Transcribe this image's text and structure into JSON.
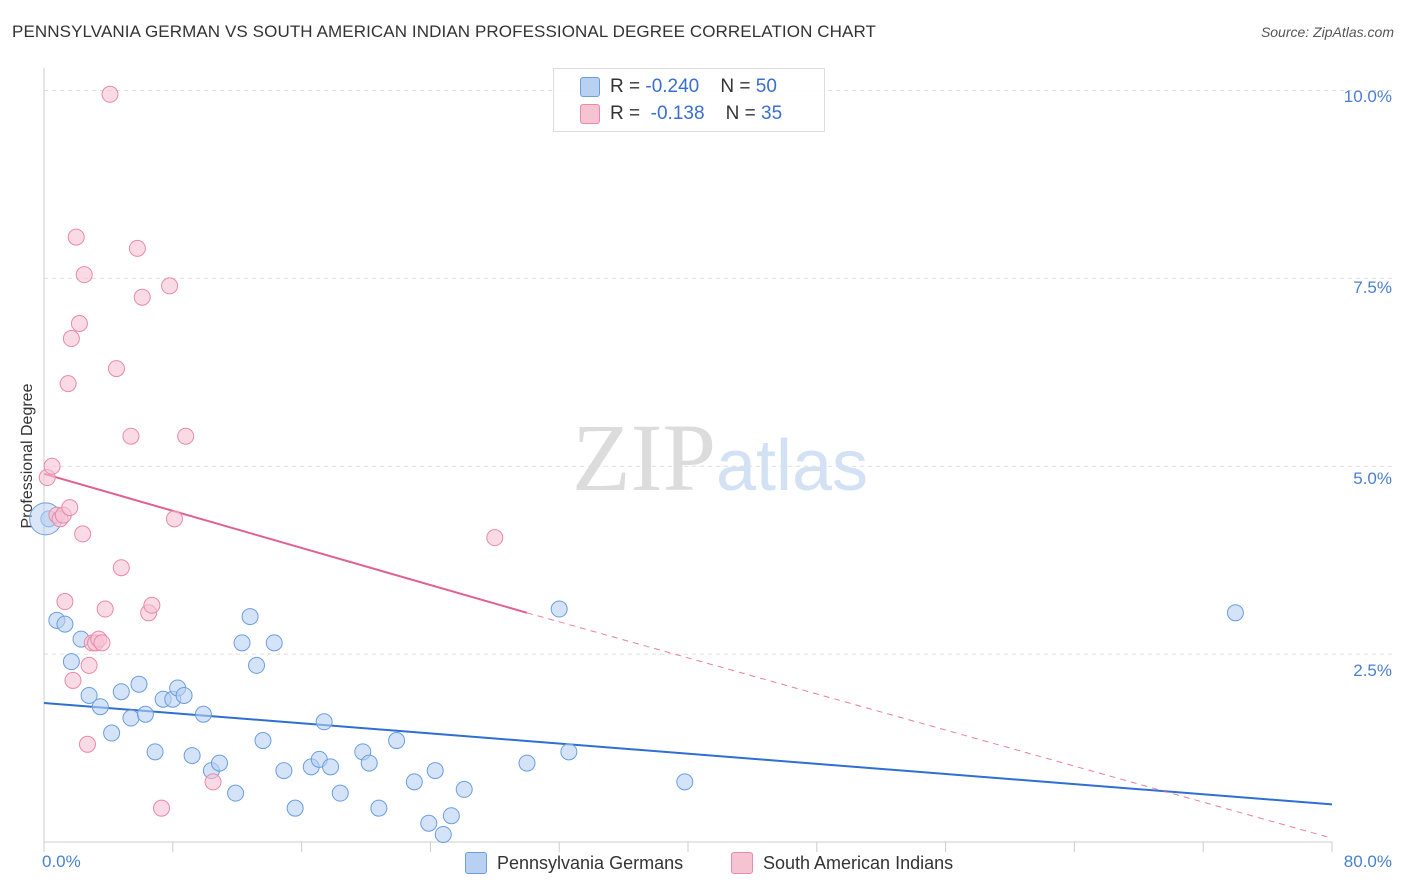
{
  "chart_data": {
    "type": "scatter",
    "title": "PENNSYLVANIA GERMAN VS SOUTH AMERICAN INDIAN PROFESSIONAL DEGREE CORRELATION CHART",
    "source": "Source: ZipAtlas.com",
    "xlabel": "",
    "ylabel": "Professional Degree",
    "xlim": [
      0,
      80
    ],
    "ylim": [
      0,
      10.3
    ],
    "x_tick_labels": [
      "0.0%",
      "80.0%"
    ],
    "y_ticks": [
      2.5,
      5.0,
      7.5,
      10.0
    ],
    "y_tick_labels": [
      "2.5%",
      "5.0%",
      "7.5%",
      "10.0%"
    ],
    "watermark": "ZIPatlas",
    "colors": {
      "blue": "#6a9ee0",
      "blue_fill": "#b8d0f2",
      "blue_line": "#2f6fd0",
      "pink": "#e88aa8",
      "pink_fill": "#f6c3d3",
      "pink_line": "#e06090",
      "tick_text": "#4a7fd0"
    },
    "legend": {
      "rows": [
        {
          "r_label": "R = ",
          "r_value": "-0.240",
          "n_label": "N = ",
          "n_value": "50"
        },
        {
          "r_label": "R = ",
          "r_value": " -0.138",
          "n_label": "N = ",
          "n_value": "35"
        }
      ]
    },
    "series": [
      {
        "name": "Pennsylvania Germans",
        "trend": {
          "x0": 0,
          "y0": 1.85,
          "x1": 80,
          "y1": 0.5
        },
        "points": [
          [
            0.3,
            4.3
          ],
          [
            0.8,
            2.95
          ],
          [
            1.3,
            2.9
          ],
          [
            1.7,
            2.4
          ],
          [
            2.3,
            2.7
          ],
          [
            2.8,
            1.95
          ],
          [
            3.5,
            1.8
          ],
          [
            4.2,
            1.45
          ],
          [
            4.8,
            2.0
          ],
          [
            5.4,
            1.65
          ],
          [
            5.9,
            2.1
          ],
          [
            6.3,
            1.7
          ],
          [
            6.9,
            1.2
          ],
          [
            7.4,
            1.9
          ],
          [
            8.0,
            1.9
          ],
          [
            8.3,
            2.05
          ],
          [
            8.7,
            1.95
          ],
          [
            9.2,
            1.15
          ],
          [
            9.9,
            1.7
          ],
          [
            10.4,
            0.95
          ],
          [
            10.9,
            1.05
          ],
          [
            11.9,
            0.65
          ],
          [
            12.3,
            2.65
          ],
          [
            12.8,
            3.0
          ],
          [
            13.2,
            2.35
          ],
          [
            13.6,
            1.35
          ],
          [
            14.3,
            2.65
          ],
          [
            14.9,
            0.95
          ],
          [
            15.6,
            0.45
          ],
          [
            16.6,
            1.0
          ],
          [
            17.1,
            1.1
          ],
          [
            17.4,
            1.6
          ],
          [
            17.8,
            1.0
          ],
          [
            18.4,
            0.65
          ],
          [
            19.8,
            1.2
          ],
          [
            20.2,
            1.05
          ],
          [
            20.8,
            0.45
          ],
          [
            21.9,
            1.35
          ],
          [
            23.0,
            0.8
          ],
          [
            23.9,
            0.25
          ],
          [
            24.3,
            0.95
          ],
          [
            24.8,
            0.1
          ],
          [
            25.3,
            0.35
          ],
          [
            26.1,
            0.7
          ],
          [
            30.0,
            1.05
          ],
          [
            32.0,
            3.1
          ],
          [
            32.6,
            1.2
          ],
          [
            39.8,
            0.8
          ],
          [
            74.0,
            3.05
          ],
          [
            0.1,
            4.3
          ]
        ]
      },
      {
        "name": "South American Indians",
        "trend": {
          "x0": 0,
          "y0": 4.9,
          "x1": 30,
          "y1": 3.05
        },
        "trend_dashed": {
          "x0": 30,
          "y0": 3.05,
          "x1": 80,
          "y1": 0.05
        },
        "points": [
          [
            0.2,
            4.85
          ],
          [
            0.5,
            5.0
          ],
          [
            0.8,
            4.35
          ],
          [
            1.0,
            4.3
          ],
          [
            1.2,
            4.35
          ],
          [
            1.3,
            3.2
          ],
          [
            1.5,
            6.1
          ],
          [
            1.6,
            4.45
          ],
          [
            1.7,
            6.7
          ],
          [
            1.8,
            2.15
          ],
          [
            2.0,
            8.05
          ],
          [
            2.2,
            6.9
          ],
          [
            2.4,
            4.1
          ],
          [
            2.5,
            7.55
          ],
          [
            2.7,
            1.3
          ],
          [
            2.8,
            2.35
          ],
          [
            3.0,
            2.65
          ],
          [
            3.2,
            2.65
          ],
          [
            3.4,
            2.7
          ],
          [
            3.6,
            2.65
          ],
          [
            3.8,
            3.1
          ],
          [
            4.1,
            9.95
          ],
          [
            4.5,
            6.3
          ],
          [
            4.8,
            3.65
          ],
          [
            5.4,
            5.4
          ],
          [
            5.8,
            7.9
          ],
          [
            6.1,
            7.25
          ],
          [
            6.5,
            3.05
          ],
          [
            6.7,
            3.15
          ],
          [
            7.3,
            0.45
          ],
          [
            7.8,
            7.4
          ],
          [
            8.1,
            4.3
          ],
          [
            8.8,
            5.4
          ],
          [
            10.5,
            0.8
          ],
          [
            28.0,
            4.05
          ]
        ]
      }
    ]
  }
}
